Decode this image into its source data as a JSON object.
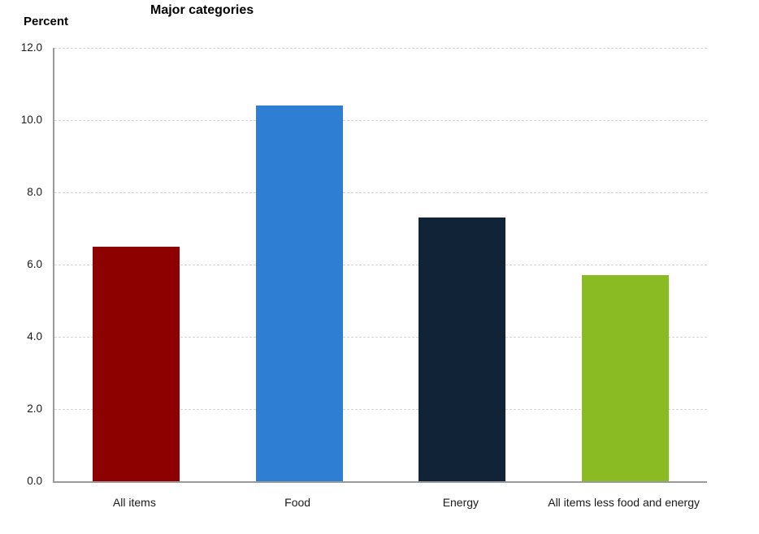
{
  "chart_data": {
    "type": "bar",
    "title": "Major categories",
    "ylabel": "Percent",
    "xlabel": "",
    "categories": [
      "All items",
      "Food",
      "Energy",
      "All items less food and energy"
    ],
    "values": [
      6.5,
      10.4,
      7.3,
      5.7
    ],
    "bar_colors": [
      "#8e0101",
      "#2e7fd4",
      "#102337",
      "#8bbb22"
    ],
    "ylim": [
      0,
      12
    ],
    "yticks": [
      0,
      2,
      4,
      6,
      8,
      10,
      12
    ],
    "ytick_labels": [
      "0.0",
      "2.0",
      "4.0",
      "6.0",
      "8.0",
      "10.0",
      "12.0"
    ],
    "grid": "horizontal-dashed",
    "legend_position": "none"
  },
  "style_colors": {
    "gridline": "#d4d4d4",
    "axis_line": "#9a9a9a",
    "text": "#1a1a1a",
    "background": "#ffffff"
  }
}
